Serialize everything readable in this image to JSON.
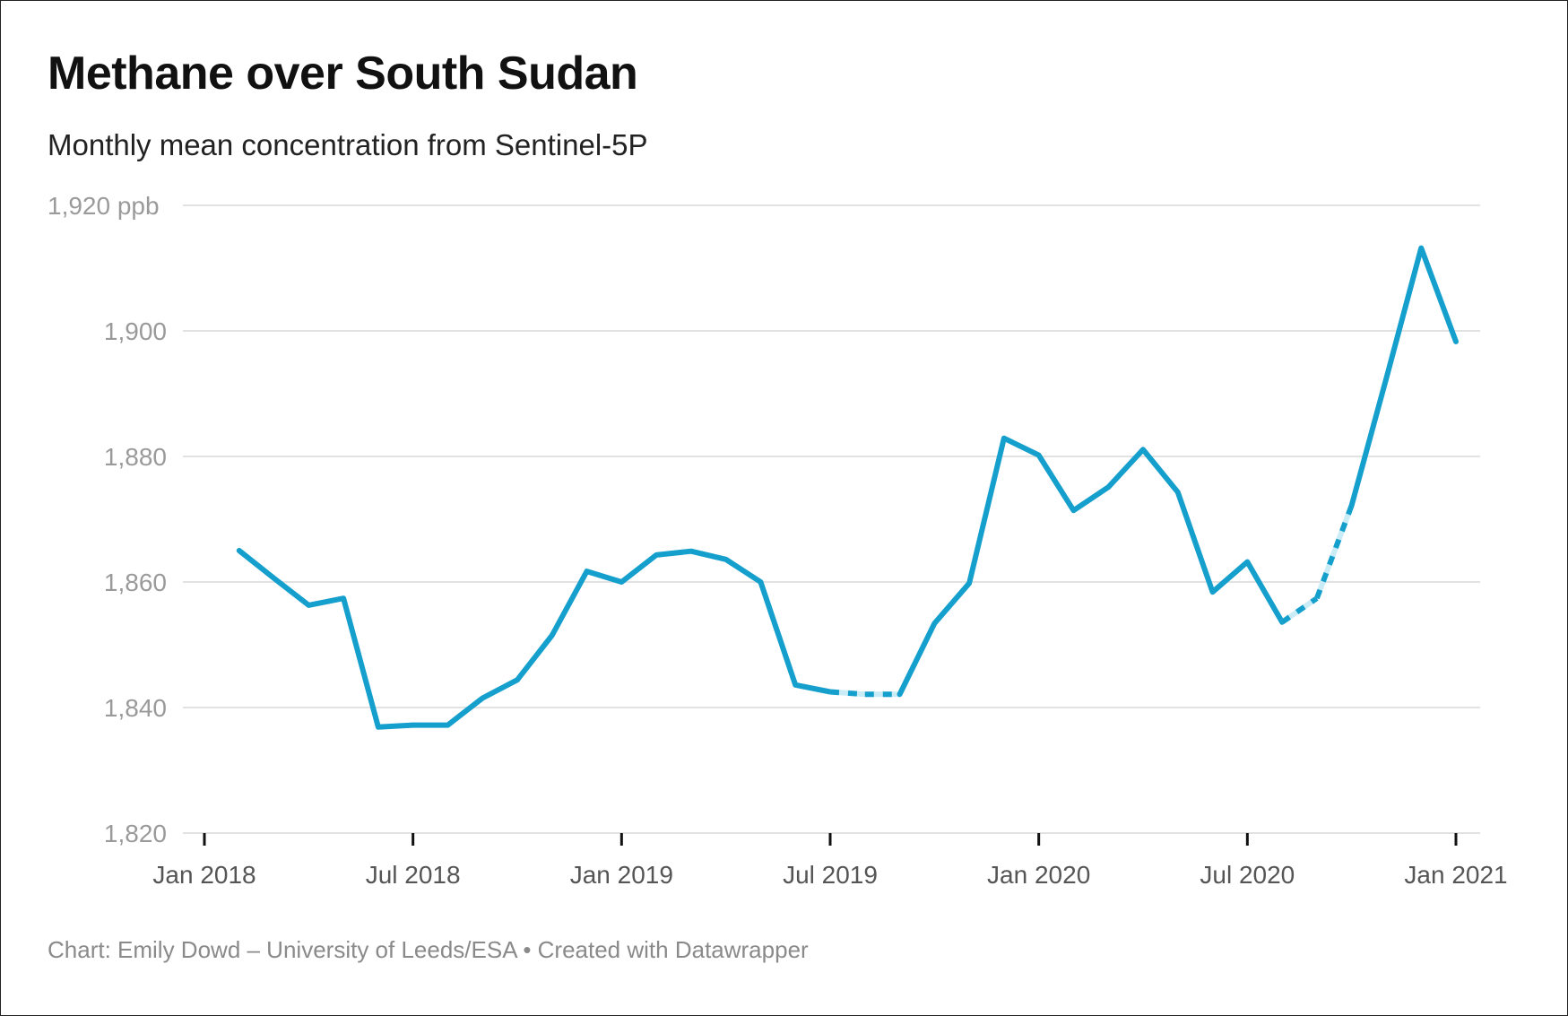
{
  "title": "Methane over South Sudan",
  "subtitle": "Monthly mean concentration from Sentinel-5P",
  "footer": "Chart: Emily Dowd – University of Leeds/ESA • Created with Datawrapper",
  "chart_data": {
    "type": "line",
    "title": "Methane over South Sudan",
    "subtitle": "Monthly mean concentration from Sentinel-5P",
    "unit": "ppb",
    "ylim": [
      1820,
      1920
    ],
    "yticks": [
      1820,
      1840,
      1860,
      1880,
      1900,
      1920
    ],
    "ytick_labels": [
      "1,820",
      "1,840",
      "1,860",
      "1,880",
      "1,900",
      "1,920 ppb"
    ],
    "xlim": [
      "2018-01",
      "2021-01"
    ],
    "xticks": [
      "2018-01",
      "2018-07",
      "2019-01",
      "2019-07",
      "2020-01",
      "2020-07",
      "2021-01"
    ],
    "xtick_labels": [
      "Jan 2018",
      "Jul 2018",
      "Jan 2019",
      "Jul 2019",
      "Jan 2020",
      "Jul 2020",
      "Jan 2021"
    ],
    "grid": "horizontal",
    "color": "#159fcc",
    "dashed_color": "#c9ecf7",
    "x": [
      "2018-02",
      "2018-03",
      "2018-04",
      "2018-05",
      "2018-06",
      "2018-07",
      "2018-08",
      "2018-09",
      "2018-10",
      "2018-11",
      "2018-12",
      "2019-01",
      "2019-02",
      "2019-03",
      "2019-04",
      "2019-05",
      "2019-06",
      "2019-07",
      "2019-08",
      "2019-09",
      "2019-10",
      "2019-11",
      "2019-12",
      "2020-01",
      "2020-02",
      "2020-03",
      "2020-04",
      "2020-05",
      "2020-06",
      "2020-07",
      "2020-08",
      "2020-09",
      "2020-10",
      "2020-11",
      "2020-12",
      "2021-01"
    ],
    "values": [
      1865.0,
      1860.6,
      1856.3,
      1857.4,
      1836.9,
      1837.2,
      1837.2,
      1841.5,
      1844.4,
      1851.5,
      1861.7,
      1860.0,
      1864.3,
      1864.9,
      1863.6,
      1860.0,
      1843.6,
      1842.5,
      1842.1,
      1842.1,
      1853.4,
      1859.8,
      1882.9,
      1880.2,
      1871.4,
      1875.1,
      1881.1,
      1874.3,
      1858.4,
      1863.2,
      1853.6,
      1857.4,
      1872.2,
      1892.5,
      1913.2,
      1898.3
    ],
    "dashed_ranges": [
      [
        "2019-07",
        "2019-09"
      ],
      [
        "2020-08",
        "2020-10"
      ]
    ]
  }
}
